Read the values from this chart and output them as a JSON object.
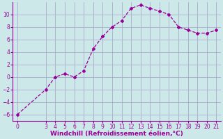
{
  "x": [
    0,
    3,
    4,
    5,
    6,
    7,
    8,
    9,
    10,
    11,
    12,
    13,
    14,
    15,
    16,
    17,
    18,
    19,
    20,
    21
  ],
  "y": [
    -6,
    -2,
    0,
    0.5,
    0,
    1,
    4.5,
    6.5,
    8,
    9,
    11,
    11.5,
    11,
    10.5,
    10,
    8,
    7.5,
    7,
    7,
    7.5
  ],
  "xlabel": "Windchill (Refroidissement éolien,°C)",
  "line_color": "#990099",
  "marker": "D",
  "markersize": 2,
  "bg_color": "#cce8e8",
  "grid_color": "#aaaacc",
  "xlim": [
    -0.5,
    21.5
  ],
  "ylim": [
    -7,
    12
  ],
  "xticks": [
    0,
    3,
    4,
    5,
    6,
    7,
    8,
    9,
    10,
    11,
    12,
    13,
    14,
    15,
    16,
    17,
    18,
    19,
    20,
    21
  ],
  "yticks": [
    -6,
    -4,
    -2,
    0,
    2,
    4,
    6,
    8,
    10
  ],
  "tick_fontsize": 5.5,
  "xlabel_fontsize": 6.5,
  "tick_color": "#990099",
  "xlabel_color": "#990099",
  "linewidth": 0.9
}
